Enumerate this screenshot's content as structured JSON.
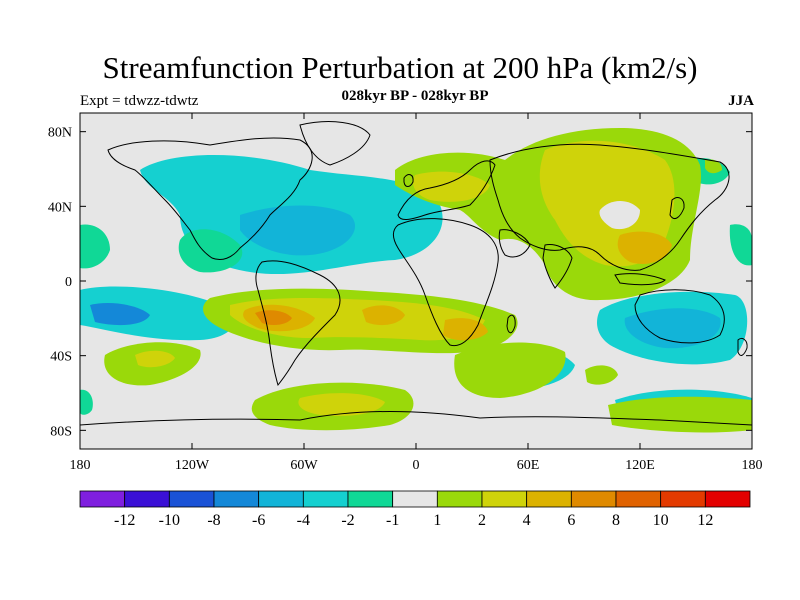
{
  "title": "Streamfunction Perturbation at 200 hPa (km2/s)",
  "subtitle": "028kyr BP - 028kyr BP",
  "left_label": "Expt = tdwzz-tdwtz",
  "right_label": "JJA",
  "map": {
    "projection": "equirectangular",
    "lon_range": [
      -180,
      180
    ],
    "lat_range": [
      -90,
      90
    ],
    "ocean_fill": "#e6e6e6",
    "coastline_color": "#000000",
    "lat_ticks": [
      {
        "value": 80,
        "label": "80N"
      },
      {
        "value": 40,
        "label": "40N"
      },
      {
        "value": 0,
        "label": "0"
      },
      {
        "value": -40,
        "label": "40S"
      },
      {
        "value": -80,
        "label": "80S"
      }
    ],
    "lon_ticks": [
      {
        "value": -180,
        "label": "180"
      },
      {
        "value": -120,
        "label": "120W"
      },
      {
        "value": -60,
        "label": "60W"
      },
      {
        "value": 0,
        "label": "0"
      },
      {
        "value": 60,
        "label": "60E"
      },
      {
        "value": 120,
        "label": "120E"
      },
      {
        "value": 180,
        "label": "180"
      }
    ]
  },
  "colorbar": {
    "colors": [
      "#7f1fdf",
      "#3a10d6",
      "#1a52d6",
      "#1488d8",
      "#12b4d8",
      "#15d0d0",
      "#10d896",
      "#e6e6e6",
      "#9ad90a",
      "#cfd30a",
      "#dcb200",
      "#df8a00",
      "#e06200",
      "#e33a00",
      "#e30000"
    ],
    "labels": [
      "-12",
      "-10",
      "-8",
      "-6",
      "-4",
      "-2",
      "-1",
      "1",
      "2",
      "4",
      "6",
      "8",
      "10",
      "12"
    ]
  }
}
